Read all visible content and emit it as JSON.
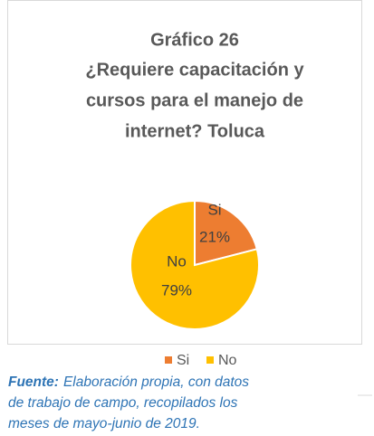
{
  "chart_data": {
    "type": "pie",
    "title": [
      "Gráfico 26",
      "¿Requiere capacitación y",
      "cursos para el manejo de",
      "internet? Toluca"
    ],
    "categories": [
      "Si",
      "No"
    ],
    "values": [
      21,
      79
    ],
    "value_labels": [
      "21%",
      "79%"
    ],
    "colors": [
      "#ED7D31",
      "#FFC000"
    ],
    "legend": "bottom"
  },
  "source": {
    "label": "Fuente:",
    "lines": [
      "Elaboración propia, con datos",
      "de trabajo de campo, recopilados los",
      "meses de mayo-junio de 2019."
    ]
  }
}
